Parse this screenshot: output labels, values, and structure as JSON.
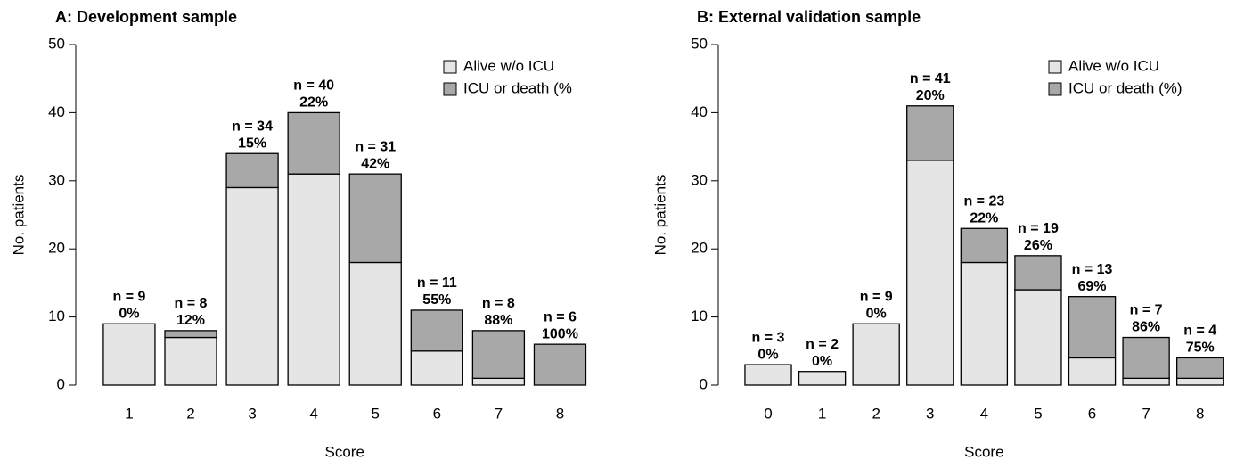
{
  "chart_data": [
    {
      "type": "bar",
      "stacked": true,
      "title": "A: Development sample",
      "x_label": "Score",
      "y_label": "No. patients",
      "categories": [
        "1",
        "2",
        "3",
        "4",
        "5",
        "6",
        "7",
        "8"
      ],
      "series": [
        {
          "name": "Alive w/o ICU",
          "color": "#e5e5e5",
          "values": [
            9,
            7,
            29,
            31,
            18,
            5,
            1,
            0
          ]
        },
        {
          "name": "ICU or death (%",
          "color": "#a8a8a8",
          "values": [
            0,
            1,
            5,
            9,
            13,
            6,
            7,
            6
          ]
        }
      ],
      "n_labels": [
        "n = 9",
        "n = 8",
        "n = 34",
        "n = 40",
        "n = 31",
        "n = 11",
        "n = 8",
        "n = 6"
      ],
      "pct_labels": [
        "0%",
        "12%",
        "15%",
        "22%",
        "42%",
        "55%",
        "88%",
        "100%"
      ],
      "ylim": [
        0,
        50
      ],
      "yticks": [
        0,
        10,
        20,
        30,
        40,
        50
      ],
      "legend": "top-right"
    },
    {
      "type": "bar",
      "stacked": true,
      "title": "B: External validation sample",
      "x_label": "Score",
      "y_label": "No. patients",
      "categories": [
        "0",
        "1",
        "2",
        "3",
        "4",
        "5",
        "6",
        "7",
        "8"
      ],
      "series": [
        {
          "name": "Alive w/o ICU",
          "color": "#e5e5e5",
          "values": [
            3,
            2,
            9,
            33,
            18,
            14,
            4,
            1,
            1
          ]
        },
        {
          "name": "ICU or death (%)",
          "color": "#a8a8a8",
          "values": [
            0,
            0,
            0,
            8,
            5,
            5,
            9,
            6,
            3
          ]
        }
      ],
      "n_labels": [
        "n = 3",
        "n = 2",
        "n = 9",
        "n = 41",
        "n = 23",
        "n = 19",
        "n = 13",
        "n = 7",
        "n = 4"
      ],
      "pct_labels": [
        "0%",
        "0%",
        "0%",
        "20%",
        "22%",
        "26%",
        "69%",
        "86%",
        "75%"
      ],
      "ylim": [
        0,
        50
      ],
      "yticks": [
        0,
        10,
        20,
        30,
        40,
        50
      ],
      "legend": "top-right"
    }
  ]
}
